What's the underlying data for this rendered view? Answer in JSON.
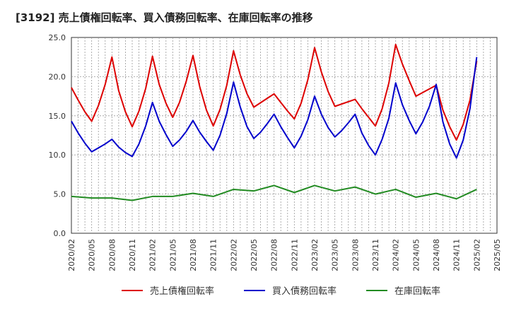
{
  "chart_data": {
    "type": "line",
    "title": "[3192]  売上債権回転率、買入債務回転率、在庫回転率の推移",
    "xlabel": "",
    "ylabel": "",
    "ylim": [
      0,
      25
    ],
    "yticks": [
      "0.0",
      "5.0",
      "10.0",
      "15.0",
      "20.0",
      "25.0"
    ],
    "xticks": [
      "2020/02",
      "2020/05",
      "2020/08",
      "2020/11",
      "2021/02",
      "2021/05",
      "2021/08",
      "2021/11",
      "2022/02",
      "2022/05",
      "2022/08",
      "2022/11",
      "2023/02",
      "2023/05",
      "2023/08",
      "2023/11",
      "2024/02",
      "2024/05",
      "2024/08",
      "2024/11",
      "2025/02",
      "2025/05"
    ],
    "x": [
      "2020/02",
      "2020/03",
      "2020/04",
      "2020/05",
      "2020/06",
      "2020/07",
      "2020/08",
      "2020/09",
      "2020/10",
      "2020/11",
      "2020/12",
      "2021/01",
      "2021/02",
      "2021/03",
      "2021/04",
      "2021/05",
      "2021/06",
      "2021/07",
      "2021/08",
      "2021/09",
      "2021/10",
      "2021/11",
      "2021/12",
      "2022/01",
      "2022/02",
      "2022/03",
      "2022/04",
      "2022/05",
      "2022/06",
      "2022/07",
      "2022/08",
      "2022/09",
      "2022/10",
      "2022/11",
      "2022/12",
      "2023/01",
      "2023/02",
      "2023/03",
      "2023/04",
      "2023/05",
      "2023/06",
      "2023/07",
      "2023/08",
      "2023/09",
      "2023/10",
      "2023/11",
      "2023/12",
      "2024/01",
      "2024/02",
      "2024/03",
      "2024/04",
      "2024/05",
      "2024/06",
      "2024/07",
      "2024/08",
      "2024/09",
      "2024/10",
      "2024/11",
      "2024/12",
      "2025/01",
      "2025/02"
    ],
    "series": [
      {
        "name": "売上債権回転率",
        "color": "#dd0000",
        "values": [
          18.6,
          17.0,
          15.5,
          14.3,
          16.3,
          19.0,
          22.5,
          18.2,
          15.5,
          13.6,
          15.6,
          18.5,
          22.6,
          19.0,
          16.6,
          14.8,
          16.7,
          19.4,
          22.7,
          18.7,
          15.7,
          13.7,
          15.8,
          18.9,
          23.3,
          20.2,
          17.8,
          16.1,
          null,
          null,
          17.8,
          16.7,
          15.6,
          14.6,
          16.6,
          19.6,
          23.7,
          20.6,
          18.1,
          16.2,
          null,
          null,
          17.1,
          15.9,
          14.8,
          13.7,
          15.9,
          19.2,
          24.1,
          21.6,
          19.5,
          17.5,
          null,
          null,
          18.9,
          15.7,
          13.6,
          11.9,
          13.9,
          17.0,
          22.0
        ]
      },
      {
        "name": "買入債務回転率",
        "color": "#0000cc",
        "values": [
          14.3,
          12.8,
          11.5,
          10.4,
          10.9,
          11.4,
          12.0,
          11.0,
          10.3,
          9.8,
          11.4,
          13.7,
          16.7,
          14.3,
          12.6,
          11.1,
          11.9,
          13.0,
          14.4,
          12.9,
          11.7,
          10.6,
          12.5,
          15.3,
          19.3,
          16.1,
          13.6,
          12.1,
          12.9,
          14.0,
          15.2,
          13.6,
          12.2,
          10.9,
          12.4,
          14.5,
          17.5,
          15.2,
          13.5,
          12.3,
          13.1,
          14.1,
          15.2,
          12.8,
          11.2,
          10.0,
          12.0,
          14.7,
          19.2,
          16.4,
          14.4,
          12.7,
          14.2,
          16.2,
          19.0,
          14.2,
          11.4,
          9.6,
          11.9,
          15.9,
          22.5
        ]
      },
      {
        "name": "在庫回転率",
        "color": "#228b22",
        "values": [
          4.7,
          null,
          null,
          4.5,
          null,
          null,
          4.5,
          null,
          null,
          4.2,
          null,
          null,
          4.7,
          null,
          null,
          4.7,
          null,
          null,
          5.1,
          null,
          null,
          4.7,
          null,
          null,
          5.6,
          null,
          null,
          5.4,
          null,
          null,
          6.1,
          null,
          null,
          5.2,
          null,
          null,
          6.1,
          null,
          null,
          5.4,
          null,
          null,
          5.9,
          null,
          null,
          5.0,
          null,
          null,
          5.6,
          null,
          null,
          4.6,
          null,
          null,
          5.1,
          null,
          null,
          4.4,
          null,
          null,
          5.6
        ]
      }
    ],
    "legend": "bottom",
    "grid": true
  }
}
